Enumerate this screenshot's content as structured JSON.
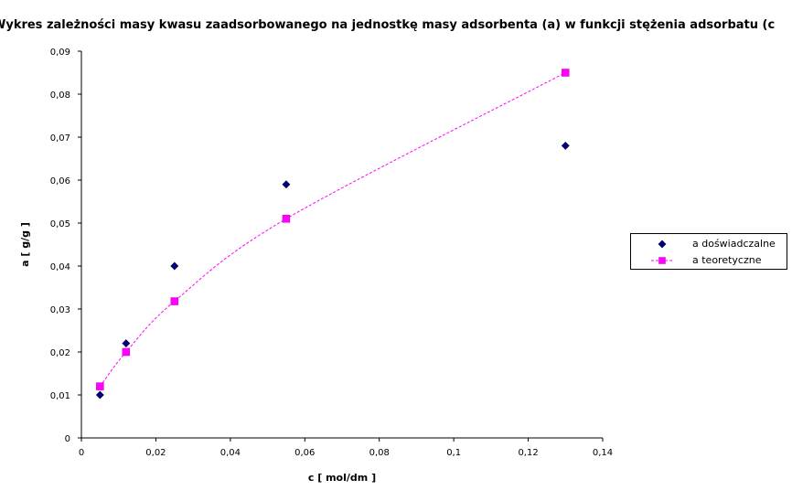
{
  "chart_data": {
    "type": "scatter",
    "title": "Wykres zależności masy kwasu zaadsorbowanego na jednostkę masy adsorbenta (a) w funkcji stężenia adsorbatu (c",
    "xlabel": "c [ mol/dm ]",
    "ylabel": "a [ g/g ]",
    "xlim": [
      0,
      0.14
    ],
    "ylim": [
      0,
      0.09
    ],
    "x_ticks": [
      "0",
      "0,02",
      "0,04",
      "0,06",
      "0,08",
      "0,1",
      "0,12",
      "0,14"
    ],
    "y_ticks": [
      "0",
      "0,01",
      "0,02",
      "0,03",
      "0,04",
      "0,05",
      "0,06",
      "0,07",
      "0,08",
      "0,09"
    ],
    "grid": false,
    "legend_position": "right",
    "series": [
      {
        "name": "a doświadczalne",
        "marker": "diamond",
        "color": "#000080",
        "x": [
          0.005,
          0.012,
          0.025,
          0.055,
          0.13
        ],
        "y": [
          0.01,
          0.022,
          0.04,
          0.059,
          0.068
        ]
      },
      {
        "name": "a teoretyczne",
        "marker": "square",
        "line": "dashed",
        "color": "#ff00ff",
        "x": [
          0.005,
          0.012,
          0.025,
          0.055,
          0.13
        ],
        "y": [
          0.012,
          0.02,
          0.0318,
          0.051,
          0.085
        ]
      }
    ]
  }
}
